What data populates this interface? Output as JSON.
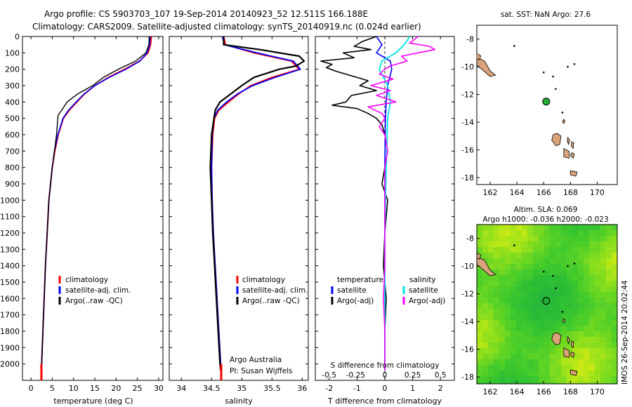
{
  "title": {
    "line1": "Argo profile: CS 5903703_107 19-Sep-2014 20140923_52 12.511S 166.188E",
    "line2": "Climatology: CARS2009. Satellite-adjusted climatology: synTS_20140919.nc (0.024d earlier)"
  },
  "side_stamp": "IMOS 26-Sep-2014 20:02:44",
  "institution": {
    "line1": "Argo Australia",
    "line2": "PI: Susan Wijffels"
  },
  "colors": {
    "climatology": "#ff0000",
    "satellite": "#0000ff",
    "argo": "#000000",
    "sat_salinity": "#00e5e5",
    "argo_salinity": "#ff00ff",
    "land": "#d8a27a",
    "float": "#22aa33"
  },
  "legend_profile": [
    {
      "label": "climatology",
      "color": "#ff0000"
    },
    {
      "label": "satellite-adj. clim.",
      "color": "#0000ff"
    },
    {
      "label": "Argo(..raw -QC)",
      "color": "#000000"
    }
  ],
  "legend_diff": {
    "temperature_header": "temperature",
    "salinity_header": "salinity",
    "temperature": [
      {
        "label": "satellite",
        "color": "#0000ff"
      },
      {
        "label": "Argo(-adj)",
        "color": "#000000"
      }
    ],
    "salinity": [
      {
        "label": "satellite",
        "color": "#00e5e5"
      },
      {
        "label": "Argo(-adj)",
        "color": "#ff00ff"
      }
    ]
  },
  "chart_data": [
    {
      "type": "line",
      "xlabel": "temperature (deg C)",
      "ylabel": "",
      "xlim": [
        -2,
        31
      ],
      "ylim": [
        2100,
        0
      ],
      "xticks": [
        0,
        5,
        10,
        15,
        20,
        25,
        30
      ],
      "yticks": [
        0,
        100,
        200,
        300,
        400,
        500,
        600,
        700,
        800,
        900,
        1000,
        1100,
        1200,
        1300,
        1400,
        1500,
        1600,
        1700,
        1800,
        1900,
        2000
      ],
      "series": [
        {
          "name": "climatology",
          "color": "#ff0000",
          "depth": [
            0,
            50,
            100,
            150,
            200,
            250,
            300,
            350,
            400,
            450,
            500,
            600,
            700,
            800,
            900,
            1000,
            1200,
            1400,
            1600,
            1800,
            2000,
            2040
          ],
          "values": [
            28.3,
            28.1,
            27.5,
            25.5,
            22.0,
            18.2,
            15.0,
            12.6,
            10.8,
            9.0,
            7.6,
            6.4,
            5.6,
            5.0,
            4.6,
            4.2,
            3.8,
            3.4,
            3.1,
            2.8,
            2.5,
            2.45
          ]
        },
        {
          "name": "satellite-adj. clim.",
          "color": "#0000ff",
          "depth": [
            0,
            50,
            100,
            150,
            200,
            250,
            300,
            350,
            400,
            450,
            500,
            600,
            700,
            800,
            900,
            1000,
            1200,
            1400,
            1600,
            1800,
            2000,
            2040
          ],
          "values": [
            28.0,
            27.9,
            27.3,
            25.6,
            22.3,
            18.4,
            15.0,
            12.5,
            10.6,
            8.8,
            7.5,
            6.3,
            5.5,
            5.0,
            4.6,
            4.2,
            3.8,
            3.4,
            3.1,
            2.8,
            2.5,
            2.45
          ]
        },
        {
          "name": "Argo(..raw -QC)",
          "color": "#000000",
          "depth": [
            0,
            50,
            100,
            150,
            200,
            250,
            300,
            350,
            400,
            450,
            480,
            500,
            600,
            700,
            800,
            900,
            1000,
            1200,
            1400,
            1600,
            1800,
            2000,
            2040
          ],
          "values": [
            27.8,
            27.7,
            27.0,
            24.6,
            20.5,
            17.0,
            14.5,
            11.0,
            8.5,
            7.2,
            6.4,
            6.3,
            6.0,
            5.5,
            5.0,
            4.6,
            4.2,
            3.8,
            3.4,
            3.1,
            2.8,
            2.5,
            2.45
          ]
        }
      ]
    },
    {
      "type": "line",
      "xlabel": "salinity",
      "ylabel": "",
      "xlim": [
        33.8,
        36.1
      ],
      "ylim": [
        2100,
        0
      ],
      "xticks": [
        34,
        34.5,
        35,
        35.5,
        36
      ],
      "series": [
        {
          "name": "climatology",
          "color": "#ff0000",
          "depth": [
            0,
            50,
            100,
            150,
            200,
            250,
            300,
            350,
            400,
            450,
            500,
            600,
            800,
            1000,
            1200,
            1400,
            1600,
            1800,
            2000,
            2040
          ],
          "values": [
            34.7,
            34.73,
            35.2,
            35.82,
            35.95,
            35.5,
            35.15,
            34.95,
            34.78,
            34.62,
            34.55,
            34.52,
            34.5,
            34.51,
            34.53,
            34.56,
            34.59,
            34.62,
            34.65,
            34.66
          ]
        },
        {
          "name": "satellite-adj. clim.",
          "color": "#0000ff",
          "depth": [
            0,
            50,
            100,
            150,
            200,
            250,
            300,
            350,
            400,
            450,
            500,
            600,
            800,
            1000,
            1200,
            1400,
            1600,
            1800,
            2000,
            2040
          ],
          "values": [
            34.68,
            34.71,
            35.25,
            35.85,
            35.97,
            35.55,
            35.18,
            34.93,
            34.75,
            34.6,
            34.54,
            34.51,
            34.5,
            34.51,
            34.53,
            34.56,
            34.59,
            34.62,
            34.65,
            34.66
          ]
        },
        {
          "name": "Argo(..raw -QC)",
          "color": "#000000",
          "depth": [
            0,
            50,
            80,
            120,
            150,
            180,
            200,
            250,
            300,
            350,
            400,
            450,
            500,
            600,
            800,
            1000,
            1200,
            1400,
            1600,
            1800,
            2000,
            2040
          ],
          "values": [
            34.7,
            34.7,
            35.3,
            35.95,
            36.03,
            35.9,
            35.62,
            35.2,
            35.0,
            34.82,
            34.64,
            34.56,
            34.54,
            34.5,
            34.48,
            34.5,
            34.52,
            34.55,
            34.58,
            34.61,
            34.64,
            34.65
          ]
        }
      ]
    },
    {
      "type": "line",
      "xlabel": "T difference from climatology",
      "x2label": "S difference from climatology",
      "xlim": [
        -2.5,
        2.5
      ],
      "ylim": [
        2100,
        0
      ],
      "xticks": [
        -2,
        -1,
        0,
        1,
        2
      ],
      "xtick_labels": [
        "-2",
        "-1",
        "0",
        "1",
        "2"
      ],
      "x2ticks": [
        -2,
        -1,
        0,
        1,
        2
      ],
      "x2tick_labels": [
        "-0.5",
        "-0.25",
        "0",
        "0.25",
        "0.5"
      ],
      "series": [
        {
          "name": "satellite (temperature)",
          "color": "#0000ff",
          "depth": [
            0,
            50,
            100,
            150,
            200,
            300,
            400,
            500,
            800,
            1200,
            1600,
            2000,
            2040
          ],
          "values": [
            -0.3,
            -0.1,
            -0.3,
            0.2,
            0.25,
            0.1,
            0.05,
            0.02,
            0.0,
            0.0,
            0.0,
            0.0,
            0.0
          ]
        },
        {
          "name": "Argo(-adj) (temperature)",
          "color": "#000000",
          "depth": [
            0,
            30,
            60,
            80,
            100,
            130,
            150,
            170,
            190,
            210,
            240,
            270,
            300,
            330,
            360,
            400,
            420,
            440,
            470,
            500,
            540,
            600,
            700,
            800,
            900,
            1000,
            1200,
            1400,
            1600,
            1800,
            2000,
            2040
          ],
          "values": [
            -0.3,
            -0.8,
            -1.1,
            -0.5,
            -1.5,
            -1.1,
            -2.3,
            -1.9,
            -2.1,
            -1.8,
            -1.2,
            -0.6,
            -0.9,
            -0.3,
            -1.2,
            -1.4,
            -1.9,
            -1.0,
            -0.6,
            -0.3,
            -0.1,
            0.0,
            0.1,
            0.0,
            -0.1,
            0.1,
            0.0,
            -0.05,
            0.05,
            0.0,
            0.0,
            0.0
          ]
        },
        {
          "name": "satellite (salinity)",
          "color": "#00e5e5",
          "depth": [
            0,
            50,
            100,
            150,
            200,
            300,
            400,
            500,
            800,
            1200,
            1600,
            2000,
            2040
          ],
          "values": [
            0.9,
            0.7,
            0.4,
            -0.1,
            -0.2,
            0.1,
            0.2,
            0.1,
            0.05,
            0.0,
            0.0,
            0.0,
            0.0
          ]
        },
        {
          "name": "Argo(-adj) (salinity)",
          "color": "#ff00ff",
          "depth": [
            0,
            40,
            60,
            80,
            100,
            120,
            150,
            180,
            200,
            230,
            260,
            300,
            330,
            360,
            400,
            430,
            470,
            500,
            550,
            600,
            700,
            800,
            1000,
            1200,
            1400,
            1600,
            1800,
            2000,
            2040
          ],
          "values": [
            1.2,
            0.9,
            1.6,
            1.8,
            1.2,
            0.6,
            0.8,
            0.2,
            0.0,
            -0.2,
            0.3,
            -0.5,
            0.2,
            -0.3,
            0.4,
            -0.6,
            -0.1,
            0.0,
            -0.2,
            0.0,
            0.1,
            0.0,
            0.0,
            0.0,
            0.0,
            -0.05,
            0.0,
            0.0,
            0.0
          ]
        }
      ]
    }
  ],
  "map_sst": {
    "title": "sat. SST: NaN Argo: 27.6",
    "xlim": [
      161,
      171.5
    ],
    "ylim": [
      -18.5,
      -7
    ],
    "xticks": [
      162,
      164,
      166,
      168,
      170
    ],
    "yticks": [
      -8,
      -10,
      -12,
      -14,
      -16,
      -18
    ],
    "float_position": {
      "lon": 166.188,
      "lat": -12.511
    }
  },
  "map_sla": {
    "title": "Altim. SLA: 0.069",
    "subtitle": "Argo h1000: -0.036 h2000: -0.023",
    "xlim": [
      161,
      171.5
    ],
    "ylim": [
      -18.5,
      -7
    ],
    "xticks": [
      162,
      164,
      166,
      168,
      170
    ],
    "yticks": [
      -8,
      -10,
      -12,
      -14,
      -16,
      -18
    ],
    "float_position": {
      "lon": 166.188,
      "lat": -12.511
    }
  }
}
